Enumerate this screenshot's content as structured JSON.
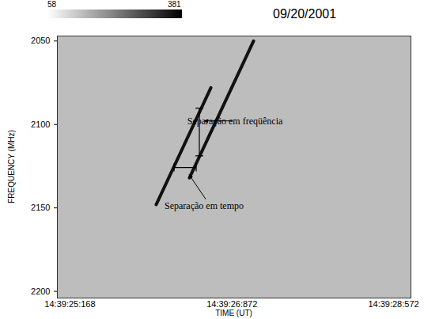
{
  "chart_data": {
    "type": "spectrogram",
    "title": "09/20/2001",
    "x_label": "TIME (UT)",
    "y_label": "FREQUENCY (MHz)",
    "xlim": [
      25.035,
      28.755
    ],
    "xticks": [
      {
        "value": 25.168,
        "label": "14:39:25:168"
      },
      {
        "value": 26.872,
        "label": "14:39:26:872"
      },
      {
        "value": 28.572,
        "label": "14:39:28:572"
      }
    ],
    "ylim": [
      2204,
      2047
    ],
    "yticks": [
      2050,
      2100,
      2150,
      2200
    ],
    "color": "#111111",
    "stripes": [
      {
        "x": [
          26.075,
          26.65
        ],
        "y": [
          2148,
          2078
        ]
      },
      {
        "x": [
          26.425,
          27.099
        ],
        "y": [
          2132,
          2050
        ]
      }
    ],
    "colorbar": {
      "range": [
        58,
        381
      ],
      "ticks": [
        58,
        381
      ]
    },
    "annotations": [
      {
        "text": "Separação em freqüência",
        "x": [
          26.533,
          26.533
        ],
        "y": [
          2090.5,
          2119
        ]
      },
      {
        "text": "Separação em tempo",
        "x": [
          26.267,
          26.5
        ],
        "y": [
          2126,
          2126
        ]
      }
    ]
  }
}
